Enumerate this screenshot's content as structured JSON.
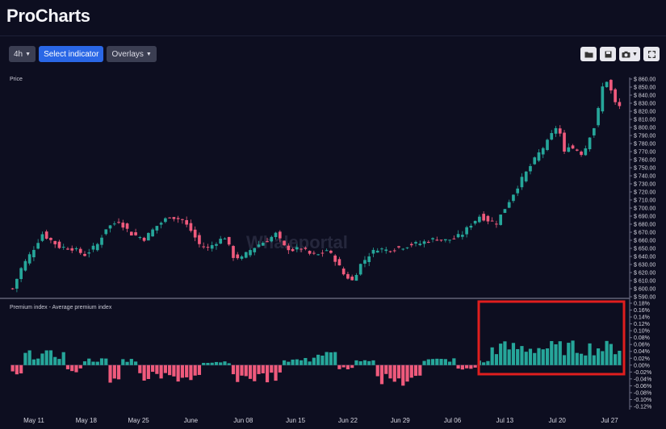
{
  "app": {
    "title": "ProCharts"
  },
  "toolbar": {
    "interval": "4h",
    "indicator": "Select indicator",
    "overlays": "Overlays"
  },
  "icons": [
    "folder-icon",
    "save-icon",
    "camera-icon",
    "fullscreen-icon"
  ],
  "colors": {
    "up": "#26a69a",
    "down": "#ef5a7c",
    "highlight": "#e01e1e",
    "accent": "#2a67e6"
  },
  "watermark": "Whaleportal",
  "chart_data": [
    {
      "type": "candlestick",
      "title": "Price",
      "ylim": [
        590,
        860
      ],
      "y_ticks": [
        "$ 860.00",
        "$ 850.00",
        "$ 840.00",
        "$ 830.00",
        "$ 820.00",
        "$ 810.00",
        "$ 800.00",
        "$ 790.00",
        "$ 780.00",
        "$ 770.00",
        "$ 760.00",
        "$ 750.00",
        "$ 740.00",
        "$ 730.00",
        "$ 720.00",
        "$ 710.00",
        "$ 700.00",
        "$ 690.00",
        "$ 680.00",
        "$ 670.00",
        "$ 660.00",
        "$ 650.00",
        "$ 640.00",
        "$ 630.00",
        "$ 620.00",
        "$ 610.00",
        "$ 600.00",
        "$ 590.00"
      ],
      "x_ticks": [
        "May 11",
        "May 18",
        "May 25",
        "June",
        "Jun 08",
        "Jun 15",
        "Jun 22",
        "Jun 29",
        "Jul 06",
        "Jul 13",
        "Jul 20",
        "Jul 27"
      ],
      "close_path": [
        [
          0,
          600
        ],
        [
          2,
          625
        ],
        [
          5,
          650
        ],
        [
          7,
          668
        ],
        [
          9,
          660
        ],
        [
          11,
          652
        ],
        [
          14,
          650
        ],
        [
          17,
          642
        ],
        [
          20,
          655
        ],
        [
          22,
          675
        ],
        [
          25,
          684
        ],
        [
          28,
          668
        ],
        [
          31,
          662
        ],
        [
          34,
          678
        ],
        [
          37,
          690
        ],
        [
          40,
          685
        ],
        [
          42,
          672
        ],
        [
          44,
          655
        ],
        [
          46,
          650
        ],
        [
          48,
          658
        ],
        [
          50,
          664
        ],
        [
          52,
          640
        ],
        [
          54,
          638
        ],
        [
          56,
          648
        ],
        [
          58,
          655
        ],
        [
          60,
          660
        ],
        [
          62,
          668
        ],
        [
          64,
          652
        ],
        [
          66,
          648
        ],
        [
          68,
          650
        ],
        [
          70,
          643
        ],
        [
          72,
          642
        ],
        [
          74,
          648
        ],
        [
          76,
          636
        ],
        [
          78,
          618
        ],
        [
          80,
          610
        ],
        [
          82,
          630
        ],
        [
          84,
          642
        ],
        [
          86,
          650
        ],
        [
          88,
          648
        ],
        [
          90,
          650
        ],
        [
          92,
          652
        ],
        [
          94,
          655
        ],
        [
          96,
          656
        ],
        [
          98,
          660
        ],
        [
          100,
          662
        ],
        [
          102,
          660
        ],
        [
          104,
          662
        ],
        [
          106,
          668
        ],
        [
          108,
          680
        ],
        [
          110,
          690
        ],
        [
          112,
          685
        ],
        [
          114,
          682
        ],
        [
          116,
          700
        ],
        [
          118,
          718
        ],
        [
          120,
          736
        ],
        [
          122,
          752
        ],
        [
          124,
          768
        ],
        [
          126,
          782
        ],
        [
          128,
          800
        ],
        [
          129,
          792
        ],
        [
          130,
          768
        ],
        [
          131,
          778
        ],
        [
          132,
          774
        ],
        [
          133,
          772
        ],
        [
          134,
          768
        ],
        [
          135,
          775
        ],
        [
          136,
          790
        ],
        [
          137,
          800
        ],
        [
          138,
          822
        ],
        [
          139,
          850
        ],
        [
          140,
          858
        ],
        [
          141,
          845
        ],
        [
          142,
          830
        ],
        [
          143,
          826
        ]
      ],
      "n_bars": 144
    },
    {
      "type": "bar",
      "title": "Premium index - Average premium index",
      "ylim": [
        -0.12,
        0.18
      ],
      "y_ticks": [
        "0.18%",
        "0.16%",
        "0.14%",
        "0.12%",
        "0.10%",
        "0.08%",
        "0.06%",
        "0.04%",
        "0.02%",
        "0.00%",
        "-0.02%",
        "-0.04%",
        "-0.06%",
        "-0.08%",
        "-0.10%",
        "-0.12%"
      ],
      "segments": [
        {
          "from": 0,
          "to": 2,
          "mean": -0.02
        },
        {
          "from": 3,
          "to": 12,
          "mean": 0.03
        },
        {
          "from": 13,
          "to": 16,
          "mean": -0.015
        },
        {
          "from": 17,
          "to": 22,
          "mean": 0.015
        },
        {
          "from": 23,
          "to": 25,
          "mean": -0.04
        },
        {
          "from": 26,
          "to": 29,
          "mean": 0.015
        },
        {
          "from": 30,
          "to": 44,
          "mean": -0.035
        },
        {
          "from": 45,
          "to": 51,
          "mean": 0.01
        },
        {
          "from": 52,
          "to": 63,
          "mean": -0.035
        },
        {
          "from": 64,
          "to": 70,
          "mean": 0.015
        },
        {
          "from": 71,
          "to": 76,
          "mean": 0.03
        },
        {
          "from": 77,
          "to": 80,
          "mean": -0.01
        },
        {
          "from": 81,
          "to": 85,
          "mean": 0.01
        },
        {
          "from": 86,
          "to": 96,
          "mean": -0.045
        },
        {
          "from": 97,
          "to": 104,
          "mean": 0.015
        },
        {
          "from": 105,
          "to": 109,
          "mean": -0.01
        },
        {
          "from": 110,
          "to": 112,
          "mean": 0.01
        },
        {
          "from": 113,
          "to": 143,
          "mean": 0.05
        }
      ],
      "highlight_range": [
        "Jul 09",
        "Jul 29"
      ]
    }
  ]
}
